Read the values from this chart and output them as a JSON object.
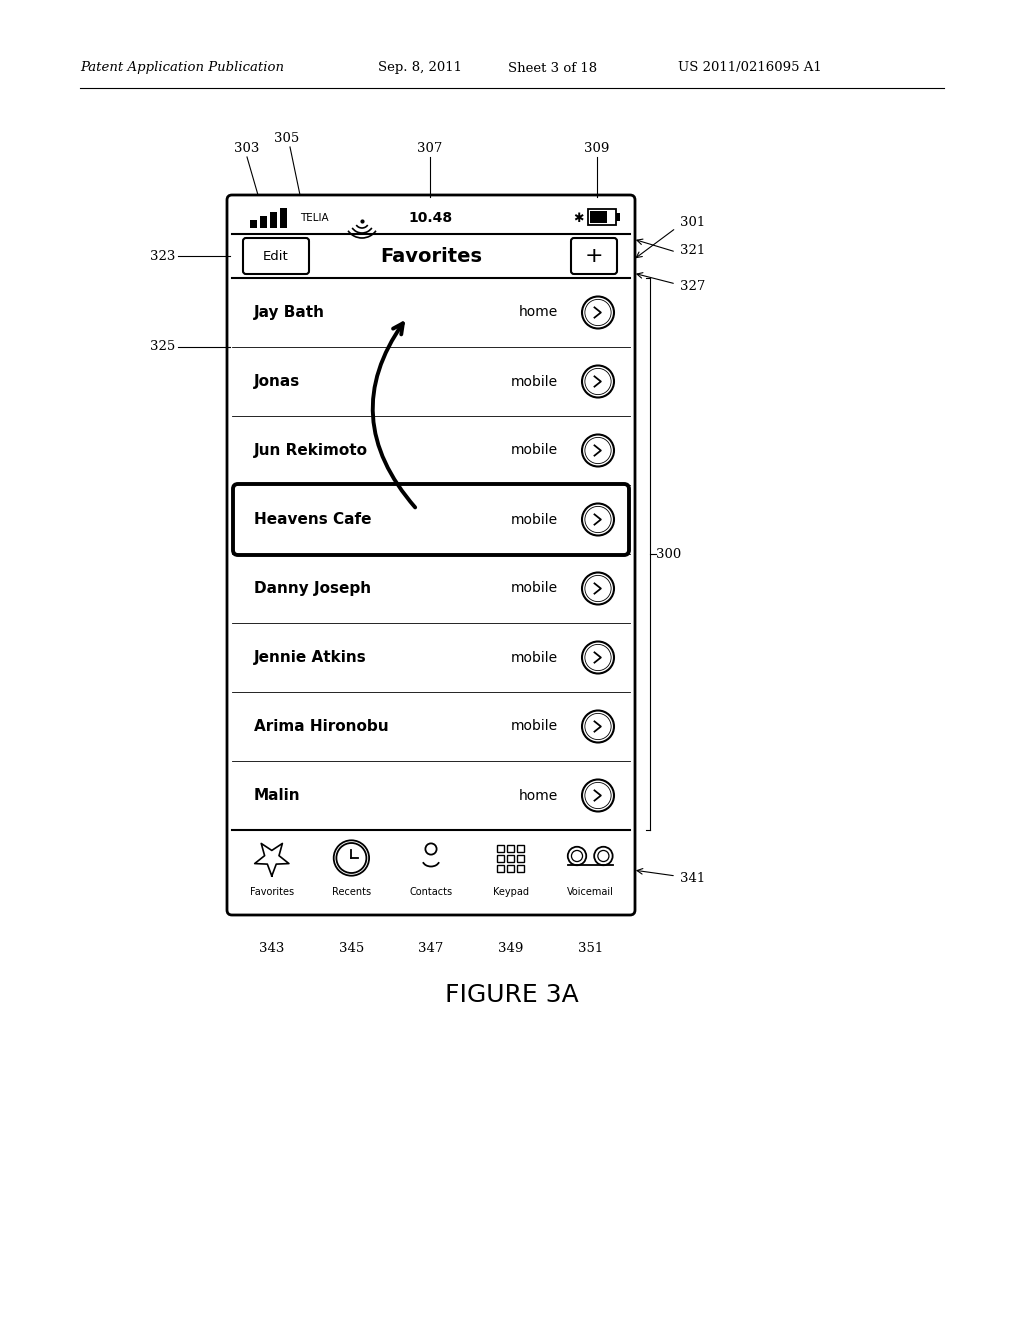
{
  "bg_color": "#ffffff",
  "header_text": "Patent Application Publication",
  "header_date": "Sep. 8, 2011",
  "header_sheet": "Sheet 3 of 18",
  "header_patent": "US 2011/0216095 A1",
  "figure_label": "FIGURE 3A",
  "contacts": [
    {
      "name": "Jay Bath",
      "type": "home",
      "highlighted": false
    },
    {
      "name": "Jonas",
      "type": "mobile",
      "highlighted": false
    },
    {
      "name": "Jun Rekimoto",
      "type": "mobile",
      "highlighted": false
    },
    {
      "name": "Heavens Cafe",
      "type": "mobile",
      "highlighted": true
    },
    {
      "name": "Danny Joseph",
      "type": "mobile",
      "highlighted": false
    },
    {
      "name": "Jennie Atkins",
      "type": "mobile",
      "highlighted": false
    },
    {
      "name": "Arima Hironobu",
      "type": "mobile",
      "highlighted": false
    },
    {
      "name": "Malin",
      "type": "home",
      "highlighted": false
    }
  ],
  "tab_items": [
    "Favorites",
    "Recents",
    "Contacts",
    "Keypad",
    "Voicemail"
  ],
  "tab_numbers": [
    "343",
    "345",
    "347",
    "349",
    "351"
  ]
}
